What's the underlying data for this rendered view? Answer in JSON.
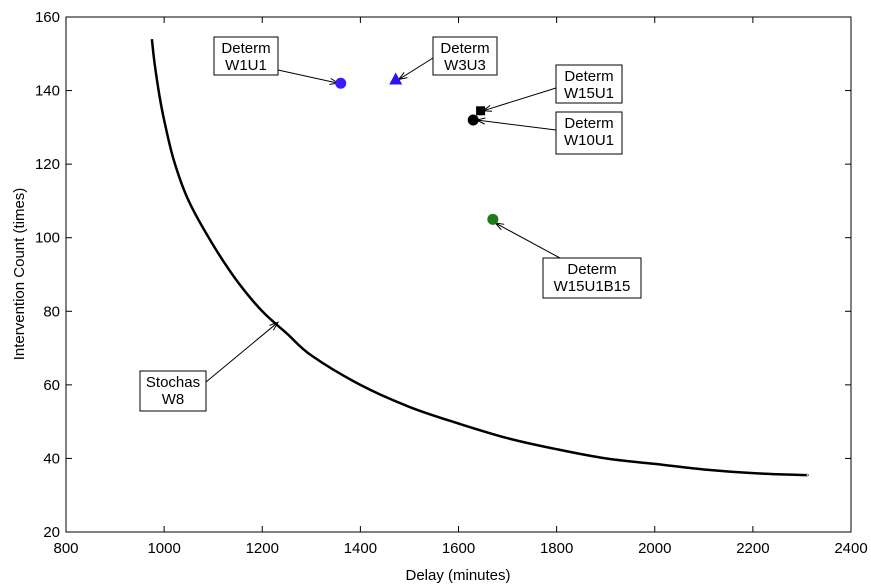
{
  "chart_data": {
    "type": "scatter",
    "xlabel": "Delay (minutes)",
    "ylabel": "Intervention Count (times)",
    "xlim": [
      800,
      2400
    ],
    "ylim": [
      20,
      160
    ],
    "xticks": [
      "800",
      "1000",
      "1200",
      "1400",
      "1600",
      "1800",
      "2000",
      "2200",
      "2400"
    ],
    "yticks": [
      "20",
      "40",
      "60",
      "80",
      "100",
      "120",
      "140",
      "160"
    ],
    "grid": false,
    "curve": {
      "color": "#000000",
      "x": [
        975,
        980,
        990,
        1000,
        1020,
        1050,
        1100,
        1150,
        1200,
        1250,
        1300,
        1400,
        1500,
        1600,
        1700,
        1800,
        1900,
        2000,
        2100,
        2200,
        2300,
        2310
      ],
      "y": [
        154,
        148,
        139,
        132,
        121,
        110,
        98,
        88,
        80,
        74,
        68,
        60,
        54,
        49.5,
        45.5,
        42.5,
        40,
        38.5,
        37,
        36,
        35.5,
        35.5
      ]
    },
    "points": [
      {
        "x": 1360,
        "y": 142,
        "marker": "circle",
        "color": "#3a1aff"
      },
      {
        "x": 1472,
        "y": 143,
        "marker": "triangle",
        "color": "#2a14f2"
      },
      {
        "x": 1645,
        "y": 134.5,
        "marker": "square",
        "color": "#000000"
      },
      {
        "x": 1630,
        "y": 132,
        "marker": "circle",
        "color": "#000000"
      },
      {
        "x": 1670,
        "y": 105,
        "marker": "circle",
        "color": "#1e7b16"
      }
    ],
    "annotations": [
      {
        "line1": "Determ",
        "line2": "W1U1",
        "target_x": 1355,
        "target_y": 142
      },
      {
        "line1": "Determ",
        "line2": "W3U3",
        "target_x": 1478,
        "target_y": 143
      },
      {
        "line1": "Determ",
        "line2": "W15U1",
        "target_x": 1650,
        "target_y": 134.5
      },
      {
        "line1": "Determ",
        "line2": "W10U1",
        "target_x": 1637,
        "target_y": 132
      },
      {
        "line1": "Determ",
        "line2": "W15U1B15",
        "target_x": 1675,
        "target_y": 104
      },
      {
        "line1": "Stochas",
        "line2": "W8",
        "target_x": 1232,
        "target_y": 77
      }
    ]
  }
}
